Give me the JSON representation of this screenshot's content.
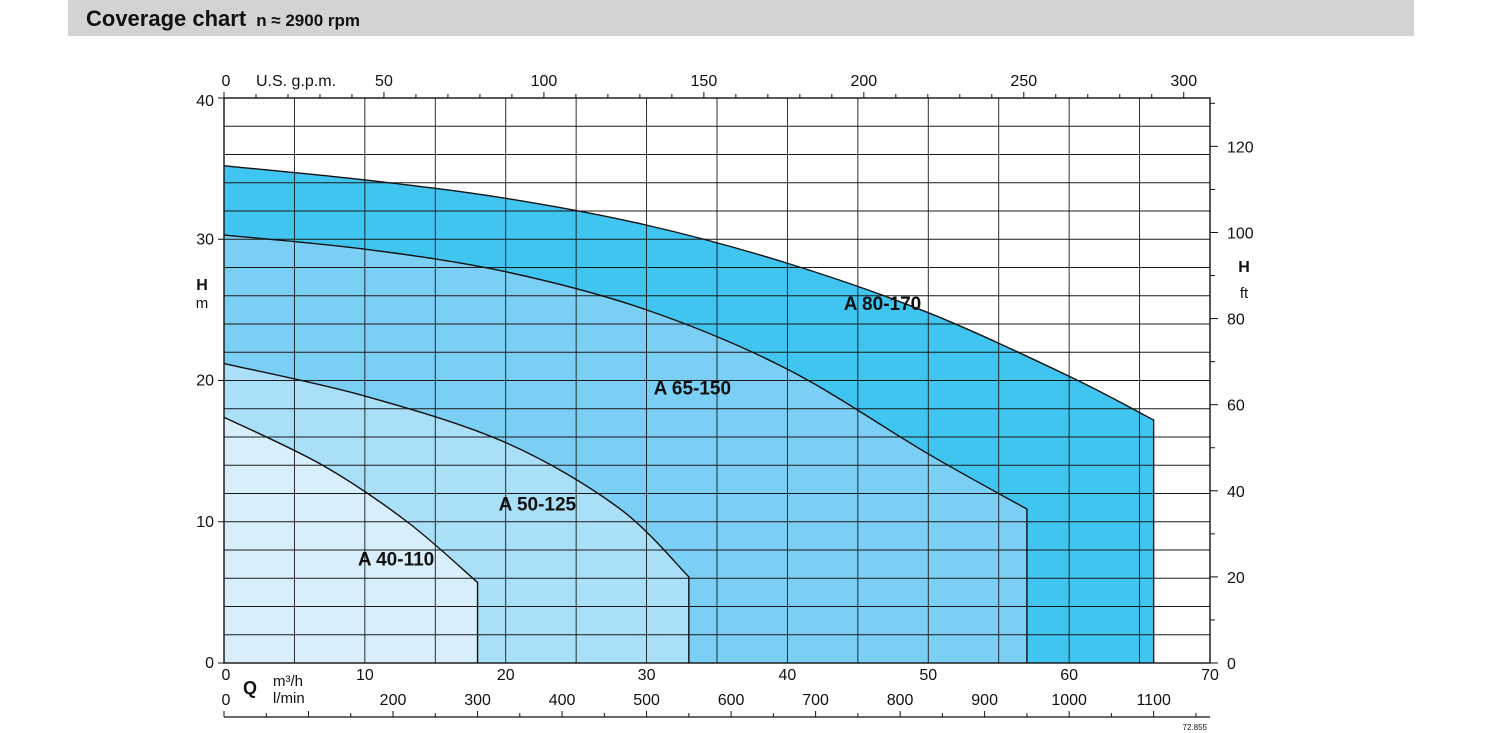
{
  "header": {
    "title": "Coverage chart",
    "subtitle": "n ≈ 2900 rpm"
  },
  "colors": {
    "header_bg": "#d2d3d5",
    "grid": "#1a1a1a",
    "A 40-110": "#d8eefb",
    "A 50-125": "#aadff8",
    "A 65-150": "#7ccff4",
    "A 80-170": "#3fc5f0"
  },
  "chart_data": {
    "type": "area",
    "x_primary": {
      "unit": "m³/h",
      "label": "Q",
      "range": [
        0,
        70
      ],
      "ticks": [
        0,
        10,
        20,
        30,
        40,
        50,
        60,
        70
      ]
    },
    "x_secondary": {
      "unit": "l/min",
      "ticks": [
        0,
        200,
        300,
        400,
        500,
        600,
        700,
        800,
        900,
        1000,
        1100
      ]
    },
    "x_top": {
      "unit": "U.S. g.p.m.",
      "ticks": [
        0,
        50,
        100,
        150,
        200,
        250,
        300
      ]
    },
    "y_left": {
      "label": "H",
      "unit": "m",
      "range": [
        0,
        40
      ],
      "ticks": [
        0,
        10,
        20,
        30,
        40
      ]
    },
    "y_right": {
      "label": "H",
      "unit": "ft",
      "ticks": [
        0,
        20,
        40,
        60,
        80,
        100,
        120
      ]
    },
    "grid": true,
    "series": [
      {
        "name": "A 80-170",
        "label_at": [
          44,
          25
        ],
        "points": [
          [
            0,
            35.2
          ],
          [
            10,
            34.2
          ],
          [
            20,
            32.9
          ],
          [
            30,
            31
          ],
          [
            40,
            28.3
          ],
          [
            50,
            24.8
          ],
          [
            60,
            20.3
          ],
          [
            66,
            17.2
          ],
          [
            66,
            0
          ]
        ]
      },
      {
        "name": "A 65-150",
        "label_at": [
          30.5,
          19
        ],
        "points": [
          [
            0,
            30.3
          ],
          [
            10,
            29.3
          ],
          [
            20,
            27.7
          ],
          [
            30,
            25
          ],
          [
            40,
            20.8
          ],
          [
            50,
            14.8
          ],
          [
            57,
            10.9
          ],
          [
            57,
            0
          ]
        ]
      },
      {
        "name": "A 50-125",
        "label_at": [
          19.5,
          10.8
        ],
        "points": [
          [
            0,
            21.2
          ],
          [
            10,
            18.9
          ],
          [
            20,
            15.6
          ],
          [
            28,
            11
          ],
          [
            33,
            6.1
          ],
          [
            33,
            0
          ]
        ]
      },
      {
        "name": "A 40-110",
        "label_at": [
          9.5,
          6.9
        ],
        "points": [
          [
            0,
            17.4
          ],
          [
            7,
            14
          ],
          [
            13,
            10
          ],
          [
            18,
            5.7
          ],
          [
            18,
            0
          ]
        ]
      }
    ],
    "footnote": "72.855"
  }
}
